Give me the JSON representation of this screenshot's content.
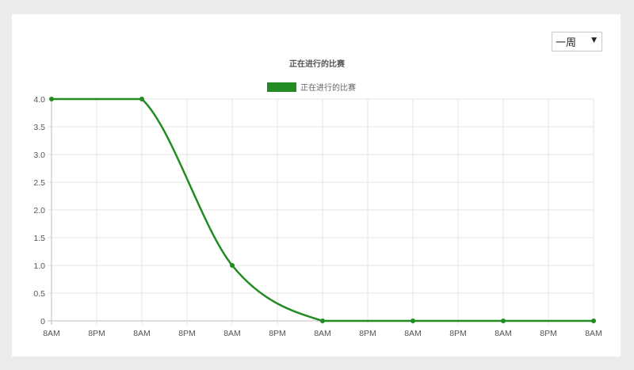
{
  "range_select": {
    "value": "一周",
    "arrow_icon": "triangle-down-icon"
  },
  "chart_data": {
    "type": "line",
    "title": "正在进行的比赛",
    "xlabel": "",
    "ylabel": "",
    "categories": [
      "8AM",
      "8PM",
      "8AM",
      "8PM",
      "8AM",
      "8PM",
      "8AM",
      "8PM",
      "8AM",
      "8PM",
      "8AM",
      "8PM",
      "8AM"
    ],
    "series": [
      {
        "name": "正在进行的比赛",
        "color": "#228b22",
        "values": [
          4,
          null,
          4,
          null,
          1,
          null,
          0,
          null,
          0,
          null,
          0,
          null,
          0
        ]
      }
    ],
    "ylim": [
      0,
      4
    ],
    "yticks": [
      "0",
      "0.5",
      "1.0",
      "1.5",
      "2.0",
      "2.5",
      "3.0",
      "3.5",
      "4.0"
    ],
    "grid": true,
    "legend": "top-center"
  }
}
